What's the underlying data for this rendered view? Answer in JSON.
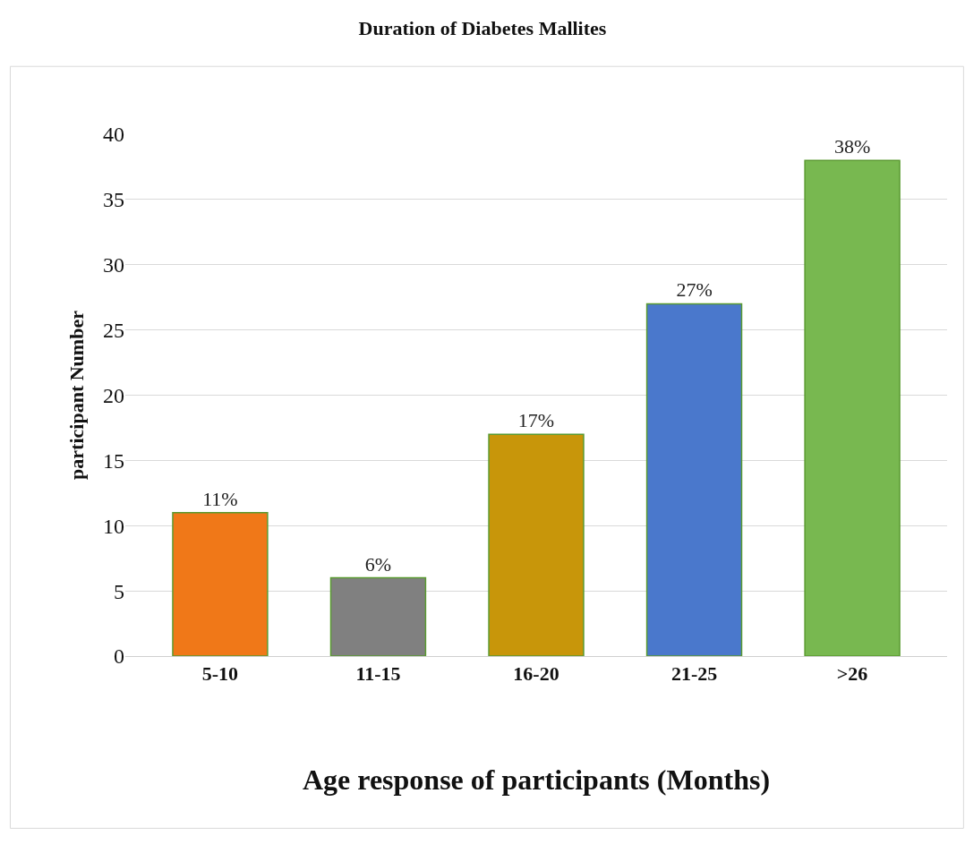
{
  "chart_data": {
    "type": "bar",
    "title": "Duration of Diabetes Mallites",
    "xlabel": "Age response of participants (Months)",
    "ylabel": "participant Number",
    "categories": [
      "5-10",
      "11-15",
      "16-20",
      "21-25",
      ">26"
    ],
    "values": [
      11,
      6,
      17,
      27,
      38
    ],
    "colors": [
      "#f07818",
      "#808080",
      "#c8960a",
      "#4a78cc",
      "#78b850"
    ],
    "value_labels": [
      "11%",
      "6%",
      "17%",
      "27%",
      "38%"
    ],
    "ylim": [
      0,
      40
    ],
    "yticks": [
      0,
      5,
      10,
      15,
      20,
      25,
      30,
      35,
      40
    ],
    "grid": "y",
    "legend": false
  }
}
